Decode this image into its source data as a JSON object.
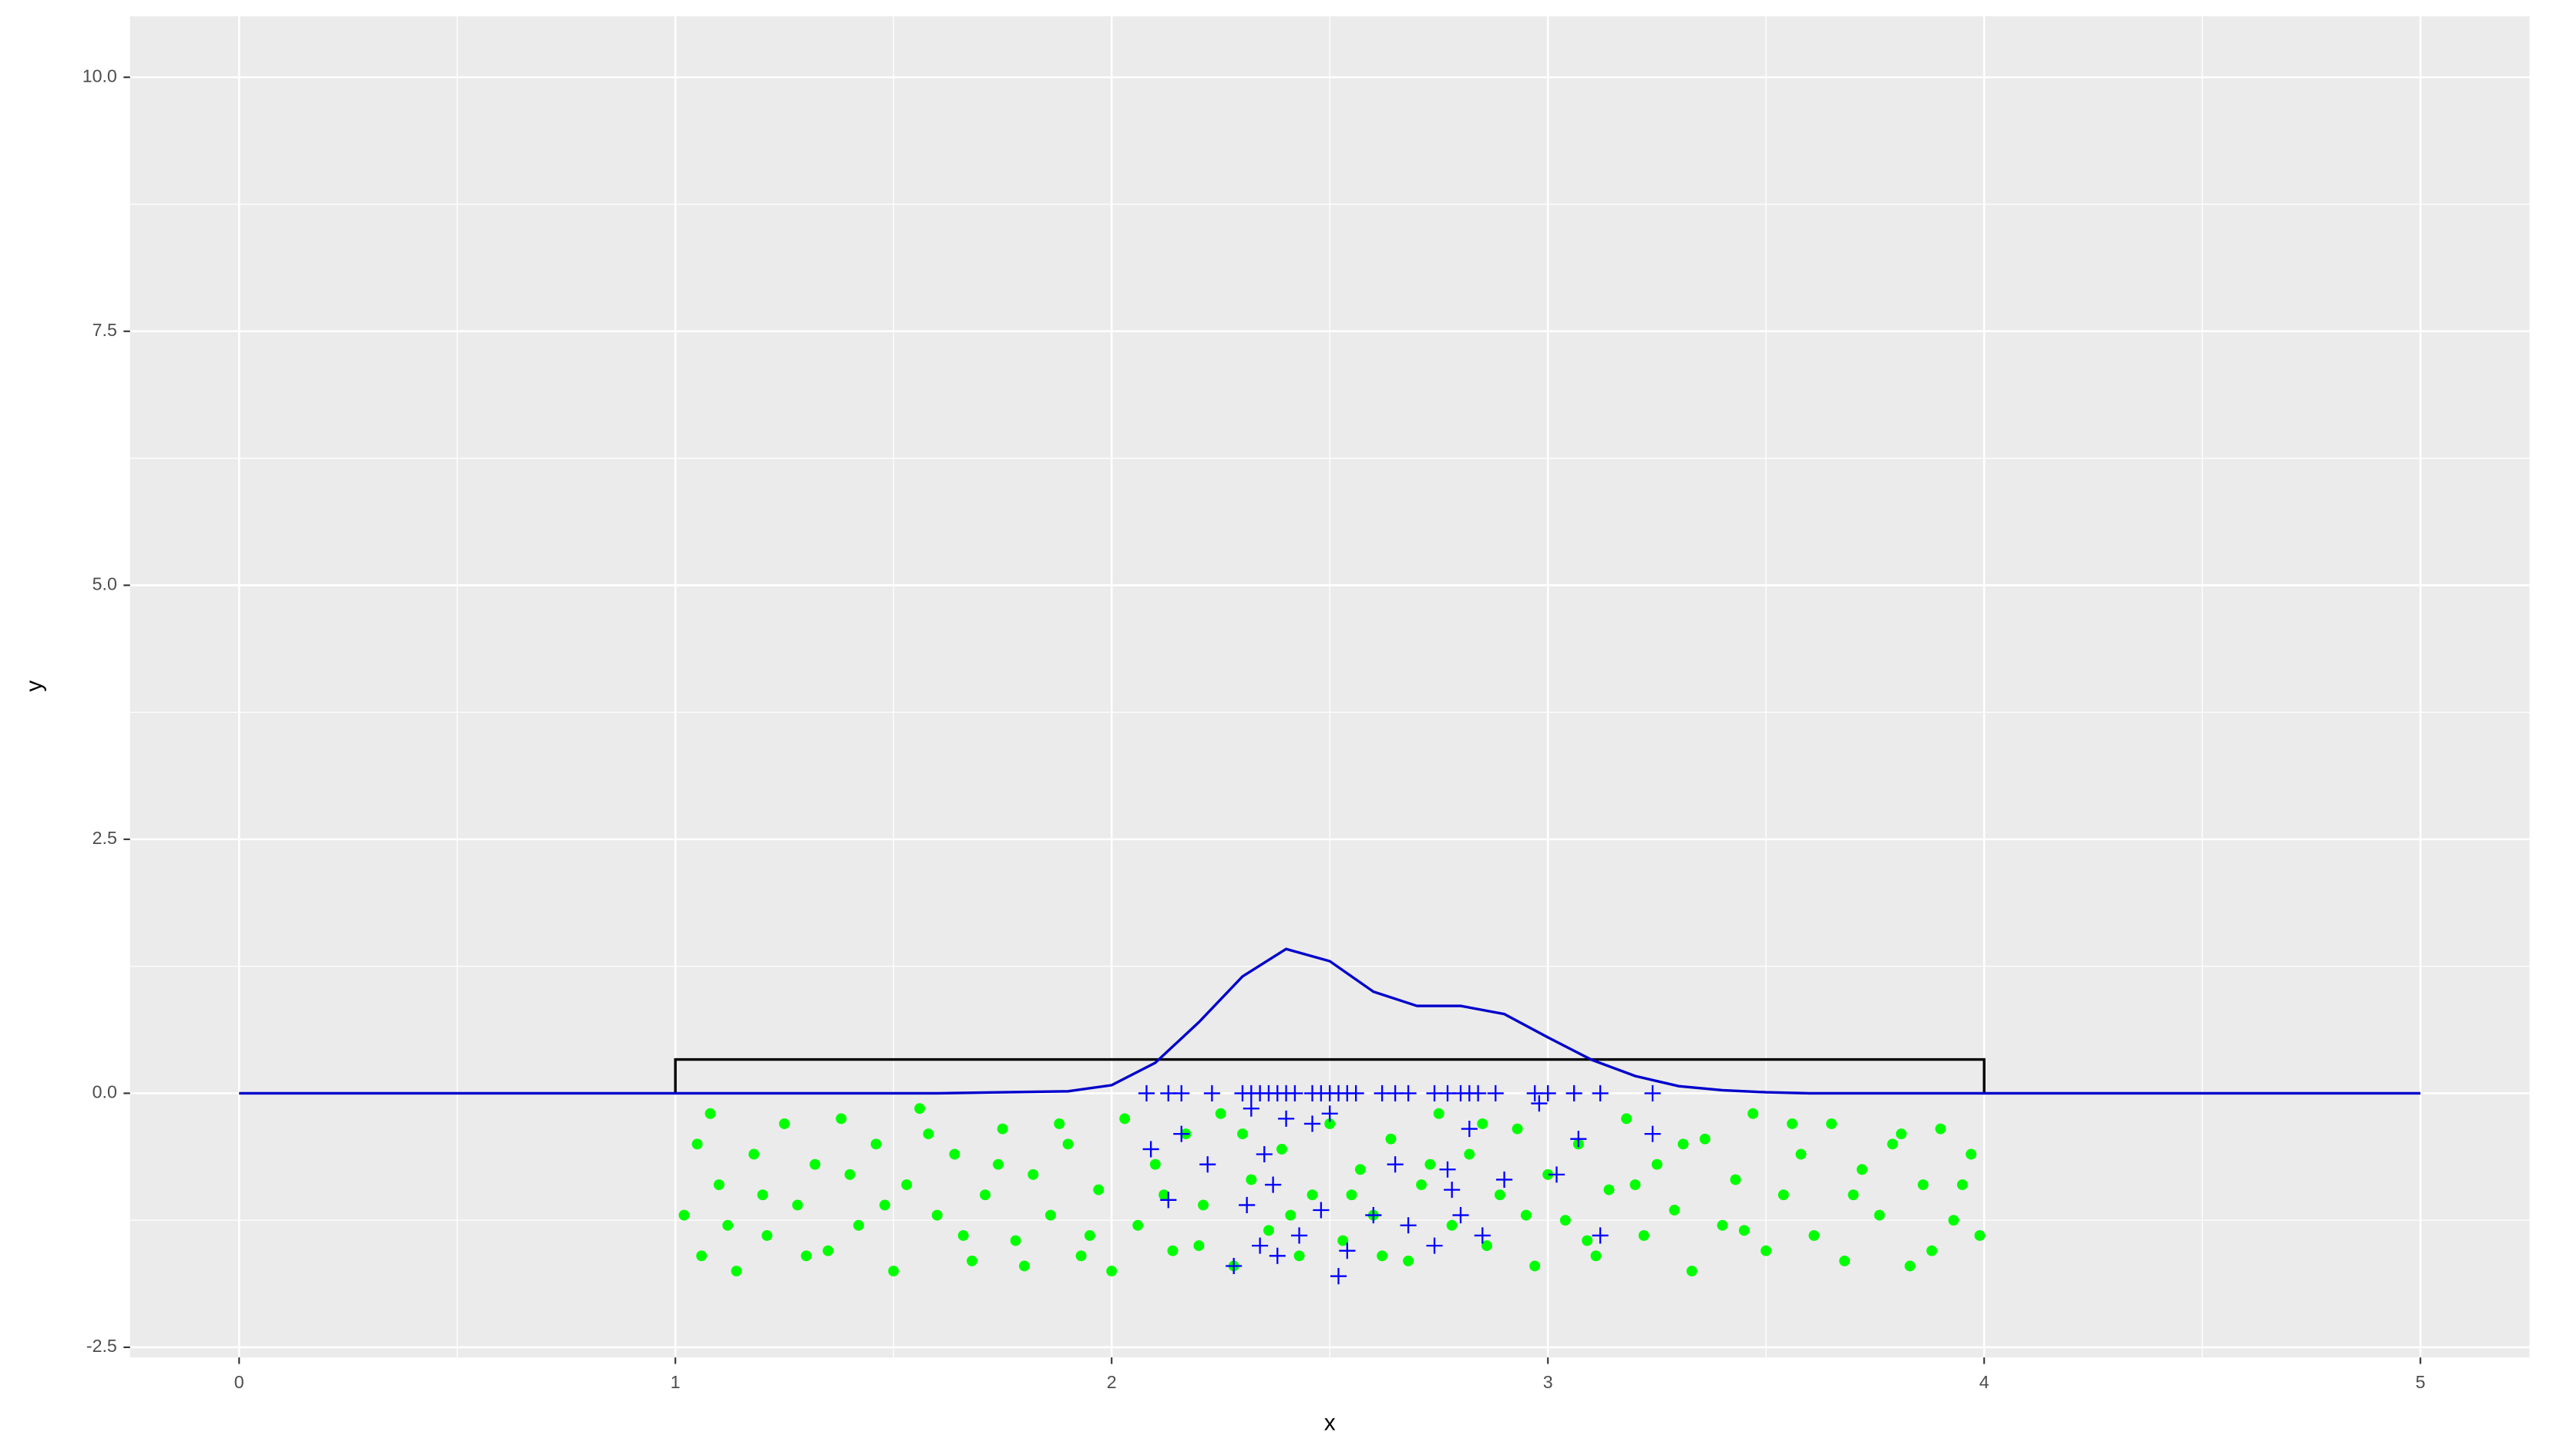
{
  "chart_data": {
    "type": "scatter",
    "x_label": "x",
    "y_label": "y",
    "xlim": [
      -0.25,
      5.25
    ],
    "xticks": [
      0,
      1,
      2,
      3,
      4,
      5
    ],
    "x_minor_ticks": [
      0.5,
      1.5,
      2.5,
      3.5,
      4.5
    ],
    "ylim": [
      -2.6,
      10.6
    ],
    "yticks": [
      {
        "value": -2.5,
        "label": "-2.5"
      },
      {
        "value": 0,
        "label": "0.0"
      },
      {
        "value": 2.5,
        "label": "2.5"
      },
      {
        "value": 5,
        "label": "5.0"
      },
      {
        "value": 7.5,
        "label": "7.5"
      },
      {
        "value": 10,
        "label": "10.0"
      }
    ],
    "y_minor_ticks": [
      -1.25,
      1.25,
      3.75,
      6.25,
      8.75
    ],
    "grid": true,
    "background": "#ebebeb",
    "series": [
      {
        "geom": "point",
        "color": "#00ff00",
        "x": [
          1.02,
          1.05,
          1.06,
          1.1,
          1.14,
          1.18,
          1.21,
          1.25,
          1.28,
          1.32,
          1.35,
          1.38,
          1.42,
          1.46,
          1.5,
          1.53,
          1.56,
          1.6,
          1.64,
          1.68,
          1.71,
          1.75,
          1.78,
          1.82,
          1.86,
          1.9,
          1.93,
          1.97,
          2.0,
          2.03,
          2.06,
          2.1,
          2.14,
          2.17,
          2.21,
          2.25,
          2.28,
          2.32,
          2.36,
          2.39,
          2.43,
          2.46,
          2.5,
          2.53,
          2.57,
          2.6,
          2.64,
          2.68,
          2.71,
          2.75,
          2.78,
          2.82,
          2.86,
          2.89,
          2.93,
          2.97,
          3.0,
          3.04,
          3.07,
          3.11,
          3.14,
          3.18,
          3.22,
          3.25,
          3.29,
          3.33,
          3.36,
          3.4,
          3.43,
          3.47,
          3.5,
          3.54,
          3.58,
          3.61,
          3.65,
          3.68,
          3.72,
          3.76,
          3.79,
          3.83,
          3.86,
          3.9,
          3.93,
          3.97,
          3.99,
          1.08,
          1.12,
          1.2,
          1.3,
          1.4,
          1.48,
          1.58,
          1.66,
          1.74,
          1.8,
          1.88,
          1.95,
          2.12,
          2.2,
          2.3,
          2.41,
          2.55,
          2.62,
          2.73,
          2.85,
          2.95,
          3.09,
          3.2,
          3.31,
          3.45,
          3.56,
          3.7,
          3.81,
          3.88,
          3.95
        ],
        "values": [
          -1.2,
          -0.5,
          -1.6,
          -0.9,
          -1.75,
          -0.6,
          -1.4,
          -0.3,
          -1.1,
          -0.7,
          -1.55,
          -0.25,
          -1.3,
          -0.5,
          -1.75,
          -0.9,
          -0.15,
          -1.2,
          -0.6,
          -1.65,
          -1.0,
          -0.35,
          -1.45,
          -0.8,
          -1.2,
          -0.5,
          -1.6,
          -0.95,
          -1.75,
          -0.25,
          -1.3,
          -0.7,
          -1.55,
          -0.4,
          -1.1,
          -0.2,
          -1.7,
          -0.85,
          -1.35,
          -0.55,
          -1.6,
          -1.0,
          -0.3,
          -1.45,
          -0.75,
          -1.2,
          -0.45,
          -1.65,
          -0.9,
          -0.2,
          -1.3,
          -0.6,
          -1.5,
          -1.0,
          -0.35,
          -1.7,
          -0.8,
          -1.25,
          -0.5,
          -1.6,
          -0.95,
          -0.25,
          -1.4,
          -0.7,
          -1.15,
          -1.75,
          -0.45,
          -1.3,
          -0.85,
          -0.2,
          -1.55,
          -1.0,
          -0.6,
          -1.4,
          -0.3,
          -1.65,
          -0.75,
          -1.2,
          -0.5,
          -1.7,
          -0.9,
          -0.35,
          -1.25,
          -0.6,
          -1.4,
          -0.2,
          -1.3,
          -1.0,
          -1.6,
          -0.8,
          -1.1,
          -0.4,
          -1.4,
          -0.7,
          -1.7,
          -0.3,
          -1.4,
          -1.0,
          -1.5,
          -0.4,
          -1.2,
          -1.0,
          -1.6,
          -0.7,
          -0.3,
          -1.2,
          -1.45,
          -0.9,
          -0.5,
          -1.35,
          -0.3,
          -1.0,
          -0.4,
          -1.55,
          -0.9
        ]
      },
      {
        "geom": "plus",
        "color": "#0000ff",
        "x": [
          2.08,
          2.13,
          2.16,
          2.23,
          2.3,
          2.32,
          2.34,
          2.36,
          2.38,
          2.4,
          2.42,
          2.46,
          2.48,
          2.5,
          2.52,
          2.54,
          2.56,
          2.62,
          2.65,
          2.68,
          2.74,
          2.77,
          2.8,
          2.82,
          2.84,
          2.88,
          2.97,
          3.0,
          3.06,
          3.12,
          3.24
        ],
        "values": [
          0,
          0,
          0,
          0,
          0,
          0,
          0,
          0,
          0,
          0,
          0,
          0,
          0,
          0,
          0,
          0,
          0,
          0,
          0,
          0,
          0,
          0,
          0,
          0,
          0,
          0,
          0,
          0,
          0,
          0,
          0
        ]
      },
      {
        "geom": "plus",
        "color": "#0000ff",
        "x": [
          2.09,
          2.13,
          2.16,
          2.22,
          2.28,
          2.31,
          2.32,
          2.34,
          2.35,
          2.37,
          2.38,
          2.4,
          2.43,
          2.46,
          2.48,
          2.5,
          2.52,
          2.54,
          2.6,
          2.65,
          2.68,
          2.74,
          2.77,
          2.78,
          2.8,
          2.82,
          2.85,
          2.9,
          2.98,
          3.02,
          3.07,
          3.12,
          3.24
        ],
        "values": [
          -0.55,
          -1.05,
          -0.4,
          -0.7,
          -1.7,
          -1.1,
          -0.15,
          -1.5,
          -0.6,
          -0.9,
          -1.6,
          -0.25,
          -1.4,
          -0.3,
          -1.15,
          -0.2,
          -1.8,
          -1.55,
          -1.2,
          -0.7,
          -1.3,
          -1.5,
          -0.75,
          -0.95,
          -1.2,
          -0.35,
          -1.4,
          -0.85,
          -0.1,
          -0.8,
          -0.45,
          -1.4,
          -0.4
        ]
      },
      {
        "geom": "line",
        "color": "#000000",
        "x": [
          1,
          1,
          4,
          4
        ],
        "values": [
          0,
          0.333,
          0.333,
          0
        ]
      },
      {
        "geom": "line",
        "color": "#0000cc",
        "x": [
          0,
          1.6,
          1.9,
          2.0,
          2.1,
          2.2,
          2.3,
          2.4,
          2.5,
          2.6,
          2.7,
          2.8,
          2.9,
          3.0,
          3.1,
          3.2,
          3.3,
          3.4,
          3.5,
          3.6,
          5
        ],
        "values": [
          0,
          0,
          0.02,
          0.08,
          0.3,
          0.7,
          1.15,
          1.42,
          1.3,
          1.0,
          0.86,
          0.86,
          0.78,
          0.55,
          0.33,
          0.17,
          0.07,
          0.03,
          0.01,
          0,
          0
        ]
      }
    ]
  }
}
